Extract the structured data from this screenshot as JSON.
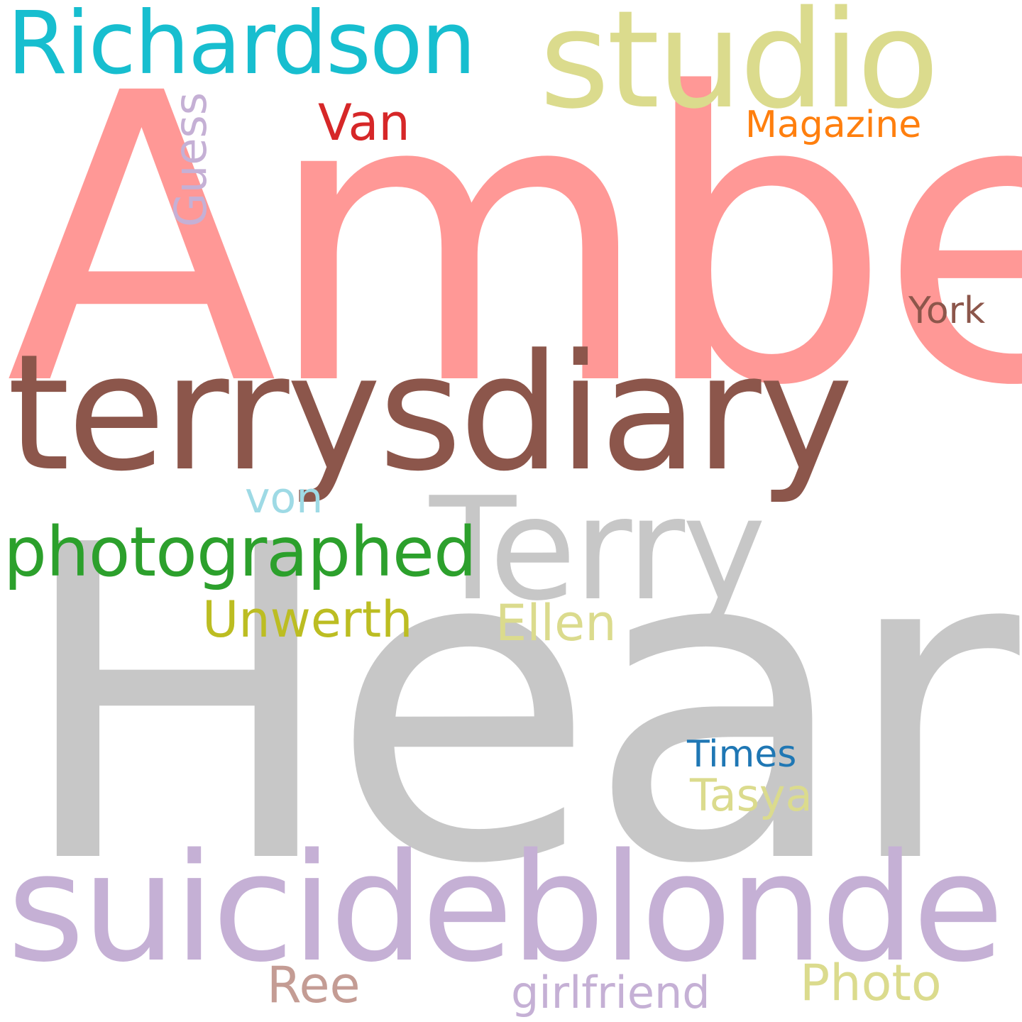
{
  "words": {
    "amber": {
      "text": "Amber",
      "color": "#ff9896"
    },
    "heard": {
      "text": "Heard",
      "color": "#c7c7c7"
    },
    "terrysdiary": {
      "text": "terrysdiary",
      "color": "#8c564b"
    },
    "suicideblonde": {
      "text": "suicideblonde",
      "color": "#c5b0d5"
    },
    "terry": {
      "text": "Terry",
      "color": "#c7c7c7"
    },
    "studio": {
      "text": "studio",
      "color": "#dbdb8d"
    },
    "richardson": {
      "text": "Richardson",
      "color": "#17becf"
    },
    "photographed": {
      "text": "photographed",
      "color": "#2ca02c"
    },
    "unwerth": {
      "text": "Unwerth",
      "color": "#bcbd22"
    },
    "ellen": {
      "text": "Ellen",
      "color": "#dbdb8d"
    },
    "von": {
      "text": "von",
      "color": "#9edae5"
    },
    "van": {
      "text": "Van",
      "color": "#d62728"
    },
    "magazine": {
      "text": "Magazine",
      "color": "#ff7f0e"
    },
    "york": {
      "text": "York",
      "color": "#8c564b"
    },
    "guess": {
      "text": "Guess",
      "color": "#c5b0d5",
      "orientation": "vertical"
    },
    "times": {
      "text": "Times",
      "color": "#1f77b4"
    },
    "tasya": {
      "text": "Tasya",
      "color": "#dbdb8d"
    },
    "ree": {
      "text": "Ree",
      "color": "#c49c94"
    },
    "girlfriend": {
      "text": "girlfriend",
      "color": "#c5b0d5"
    },
    "photo": {
      "text": "Photo",
      "color": "#dbdb8d"
    }
  }
}
